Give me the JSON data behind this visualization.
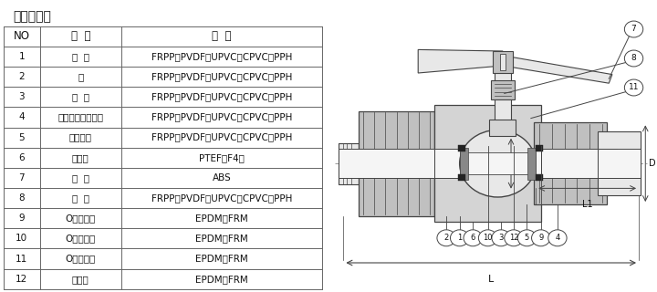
{
  "title": "零件材质表",
  "table_headers": [
    "NO",
    "名  称",
    "材  质"
  ],
  "table_rows": [
    [
      "1",
      "阀  体",
      "FRPP、PVDF、UPVC、CPVC、PPH"
    ],
    [
      "2",
      "球",
      "FRPP、PVDF、UPVC、CPVC、PPH"
    ],
    [
      "3",
      "压  紧",
      "FRPP、PVDF、UPVC、CPVC、PPH"
    ],
    [
      "4",
      "接头（螺口承接）",
      "FRPP、PVDF、UPVC、CPVC、PPH"
    ],
    [
      "5",
      "拼紧螺帽",
      "FRPP、PVDF、UPVC、CPVC、PPH"
    ],
    [
      "6",
      "密封圈",
      "PTEF（F4）"
    ],
    [
      "7",
      "手  柄",
      "ABS"
    ],
    [
      "8",
      "阀  杆",
      "FRPP、PVDF、UPVC、CPVC、PPH"
    ],
    [
      "9",
      "O型密封圈",
      "EPDM、FRM"
    ],
    [
      "10",
      "O型密封圈",
      "EPDM、FRM"
    ],
    [
      "11",
      "O型密封圈",
      "EPDM、FRM"
    ],
    [
      "12",
      "密封圈",
      "EPDM、FRM"
    ]
  ],
  "background_color": "#ffffff",
  "line_color": "#666666",
  "text_color": "#111111",
  "title_fontsize": 10,
  "header_fontsize": 8.5,
  "cell_fontsize": 7.5
}
